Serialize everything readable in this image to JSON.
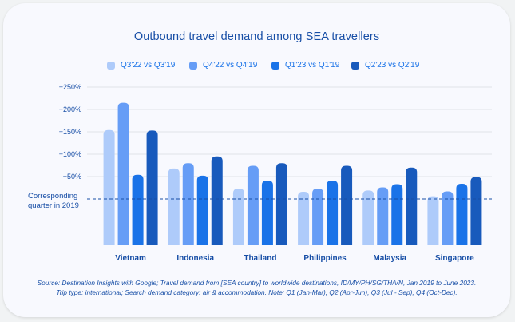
{
  "chart_data": {
    "type": "bar",
    "title": "Outbound travel demand among SEA travellers",
    "categories": [
      "Vietnam",
      "Indonesia",
      "Thailand",
      "Philippines",
      "Malaysia",
      "Singapore"
    ],
    "series": [
      {
        "name": "Q3'22 vs Q3'19",
        "color": "#aecbfa",
        "values": [
          154,
          68,
          23,
          16,
          19,
          6
        ]
      },
      {
        "name": "Q4'22 vs Q4'19",
        "color": "#669df6",
        "values": [
          215,
          80,
          74,
          23,
          26,
          17
        ]
      },
      {
        "name": "Q1'23 vs Q1'19",
        "color": "#1a73e8",
        "values": [
          54,
          52,
          41,
          41,
          33,
          34
        ]
      },
      {
        "name": "Q2'23 vs Q2'19",
        "color": "#185abc",
        "values": [
          153,
          95,
          80,
          74,
          70,
          49
        ]
      }
    ],
    "yticks": [
      {
        "value": 50,
        "label": "+50%"
      },
      {
        "value": 100,
        "label": "+100%"
      },
      {
        "value": 150,
        "label": "+150%"
      },
      {
        "value": 200,
        "label": "+200%"
      },
      {
        "value": 250,
        "label": "+250%"
      }
    ],
    "ylim": [
      -50,
      250
    ],
    "reference_line": {
      "value": 0,
      "label_lines": [
        "Corresponding",
        "quarter in 2019"
      ]
    },
    "xlabel": "",
    "ylabel": "",
    "grid": true,
    "legend_position": "top"
  },
  "source_lines": [
    "Source: Destination Insights with Google; Travel demand from [SEA country] to worldwide destinations, ID/MY/PH/SG/TH/VN, Jan 2019 to June 2023.",
    "Trip type: international; Search demand category: air & accommodation. Note: Q1 (Jan-Mar), Q2 (Apr-Jun), Q3 (Jul - Sep), Q4 (Oct-Dec)."
  ],
  "colors": {
    "text": "#174ea6",
    "grid": "#dadce0",
    "reference": "#174ea6"
  }
}
